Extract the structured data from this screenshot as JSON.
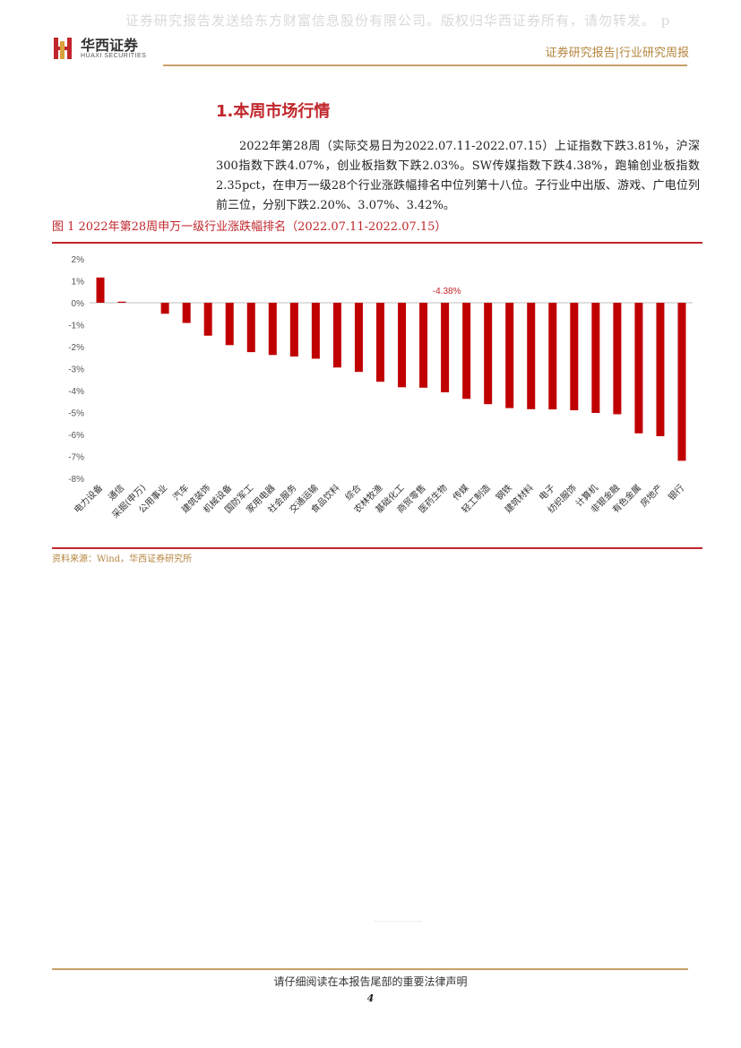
{
  "watermark": "证券研究报告发送给东方财富信息股份有限公司。版权归华西证券所有，请勿转发。 p",
  "logo": {
    "cn": "华西证券",
    "en": "HUAXI SECURITIES"
  },
  "header": {
    "right": "证券研究报告|行业研究周报"
  },
  "section": {
    "title": "1.本周市场行情"
  },
  "paragraph": "2022年第28周（实际交易日为2022.07.11-2022.07.15）上证指数下跌3.81%，沪深300指数下跌4.07%，创业板指数下跌2.03%。SW传媒指数下跌4.38%，跑输创业板指数2.35pct，在申万一级28个行业涨跌幅排名中位列第十八位。子行业中出版、游戏、广电位列前三位，分别下跌2.20%、3.07%、3.42%。",
  "figure": {
    "title": "图 1 2022年第28周申万一级行业涨跌幅排名（2022.07.11-2022.07.15）",
    "source": "资料来源：Wind，华西证券研究所"
  },
  "chart_data": {
    "type": "bar",
    "categories": [
      "电力设备",
      "通信",
      "采掘(申万)",
      "公用事业",
      "汽车",
      "建筑装饰",
      "机械设备",
      "国防军工",
      "家用电器",
      "社会服务",
      "交通运输",
      "食品饮料",
      "综合",
      "农林牧渔",
      "基础化工",
      "商贸零售",
      "医药生物",
      "传媒",
      "轻工制造",
      "钢铁",
      "建筑材料",
      "电子",
      "纺织服饰",
      "计算机",
      "非银金融",
      "有色金属",
      "房地产",
      "银行"
    ],
    "values": [
      1.15,
      0.05,
      0.0,
      -0.5,
      -0.92,
      -1.5,
      -1.93,
      -2.25,
      -2.38,
      -2.45,
      -2.55,
      -2.95,
      -3.15,
      -3.6,
      -3.85,
      -3.87,
      -4.08,
      -4.38,
      -4.62,
      -4.8,
      -4.85,
      -4.86,
      -4.9,
      -5.02,
      -5.08,
      -5.95,
      -6.08,
      -7.2
    ],
    "yticks": [
      "2%",
      "1%",
      "0%",
      "-1%",
      "-2%",
      "-3%",
      "-4%",
      "-5%",
      "-6%",
      "-7%",
      "-8%"
    ],
    "ylim": [
      -8,
      2
    ],
    "highlight_label": "-4.38%",
    "highlight_index": 17,
    "bar_color": "#c00000",
    "label_color": "#c0262b",
    "grid": false,
    "legend": "none"
  },
  "footer": {
    "disclaimer": "请仔细阅读在本报告尾部的重要法律声明",
    "page": "4"
  }
}
